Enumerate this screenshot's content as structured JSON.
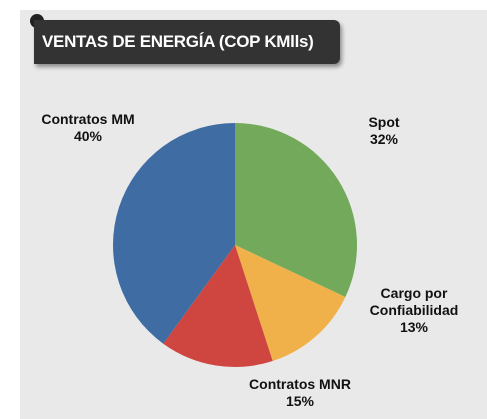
{
  "chart_data": {
    "type": "pie",
    "title": "VENTAS DE ENERGÍA (COP KMlls)",
    "categories": [
      "Spot",
      "Cargo por Confiabilidad",
      "Contratos MNR",
      "Contratos MM"
    ],
    "values": [
      32,
      13,
      15,
      40
    ],
    "value_labels": [
      "32%",
      "13%",
      "15%",
      "40%"
    ],
    "colors": [
      "#72a95a",
      "#f0b14b",
      "#cf4540",
      "#3e6ca3"
    ]
  }
}
